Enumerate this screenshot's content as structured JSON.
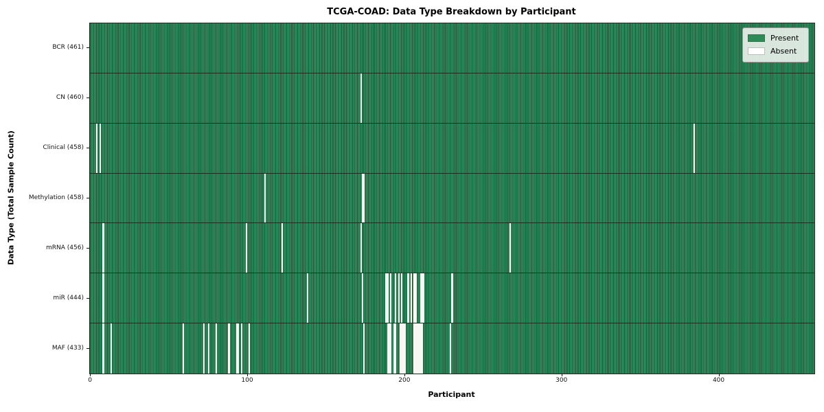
{
  "chart_data": {
    "type": "heatmap",
    "title": "TCGA-COAD: Data Type Breakdown by Participant",
    "xlabel": "Participant",
    "ylabel": "Data Type (Total Sample Count)",
    "x_ticks": [
      0,
      100,
      200,
      300,
      400
    ],
    "n_participants": 461,
    "x_range": [
      -0.5,
      460.5
    ],
    "grid": false,
    "legend_position": "upper right",
    "legend_items": [
      {
        "label": "Present",
        "color": "#2e8b57"
      },
      {
        "label": "Absent",
        "color": "#ffffff"
      }
    ],
    "colors": {
      "present": "#2e8b57",
      "present_stripe_light": "#319161",
      "cell_edge": "#1b5435",
      "absent": "#f7f7f3",
      "row_divider": "#0f2a1a",
      "legend_bg": "#e9ebe7"
    },
    "rows": [
      {
        "data_type": "BCR",
        "total_samples": 461,
        "tick_label": "BCR (461)",
        "absent_participants": []
      },
      {
        "data_type": "CN",
        "total_samples": 460,
        "tick_label": "CN (460)",
        "absent_participants": [
          172
        ]
      },
      {
        "data_type": "Clinical",
        "total_samples": 458,
        "tick_label": "Clinical (458)",
        "absent_participants": [
          4,
          6,
          384
        ]
      },
      {
        "data_type": "Methylation",
        "total_samples": 458,
        "tick_label": "Methylation (458)",
        "absent_participants": [
          111,
          173,
          174
        ]
      },
      {
        "data_type": "mRNA",
        "total_samples": 456,
        "tick_label": "mRNA (456)",
        "absent_participants": [
          8,
          99,
          122,
          172,
          267
        ]
      },
      {
        "data_type": "miR",
        "total_samples": 444,
        "tick_label": "miR (444)",
        "absent_participants": [
          8,
          138,
          173,
          188,
          189,
          191,
          194,
          196,
          198,
          202,
          204,
          206,
          207,
          210,
          211,
          212,
          230
        ]
      },
      {
        "data_type": "MAF",
        "total_samples": 433,
        "tick_label": "MAF (433)",
        "absent_participants": [
          8,
          13,
          59,
          72,
          75,
          80,
          88,
          93,
          94,
          96,
          101,
          174,
          189,
          190,
          191,
          193,
          194,
          197,
          198,
          199,
          200,
          206,
          207,
          208,
          209,
          210,
          211,
          229
        ]
      }
    ]
  }
}
